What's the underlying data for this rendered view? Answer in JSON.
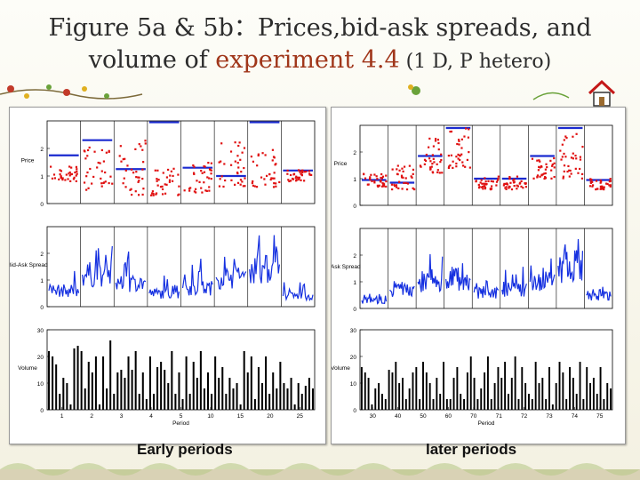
{
  "title": {
    "line1": "Figure 5a & 5b：Prices,bid-ask spreads, and",
    "line2_pre": "volume of ",
    "line2_accent": "experiment 4.4",
    "line2_sub": " (1 D, P hetero)"
  },
  "captions": {
    "left": "Early periods",
    "right": "later periods"
  },
  "colors": {
    "price_points": "#e01010",
    "equilibrium": "#1a2ad0",
    "spread": "#1530e0",
    "volume": "#000000",
    "title_accent": "#a0361a"
  },
  "icons": [
    "vine-decoration",
    "home-icon",
    "grass-decoration"
  ],
  "chart_data": [
    {
      "type": "line",
      "xlabel": "Period",
      "x_ticks": [
        "1",
        "2",
        "3",
        "4",
        "5",
        "10",
        "15",
        "20",
        "25"
      ],
      "subplots": [
        {
          "ylabel": "Price",
          "y_ticks": [
            "0",
            "1",
            "2"
          ],
          "ylim": [
            0,
            3
          ],
          "equilibrium_by_period": [
            1.75,
            2.3,
            1.25,
            2.95,
            1.3,
            1.0,
            2.95,
            1.2
          ],
          "price_band_by_period": [
            [
              0.8,
              1.4
            ],
            [
              0.5,
              2.1
            ],
            [
              0.3,
              2.3
            ],
            [
              0.3,
              1.3
            ],
            [
              0.4,
              1.5
            ],
            [
              0.6,
              2.3
            ],
            [
              0.6,
              2.0
            ],
            [
              0.8,
              1.3
            ]
          ]
        },
        {
          "ylabel": "Bid-Ask Spread",
          "y_ticks": [
            "0",
            "1",
            "2"
          ],
          "ylim": [
            0,
            3
          ],
          "typical_spread_by_period": [
            0.6,
            1.2,
            0.9,
            0.5,
            0.7,
            1.1,
            1.4,
            0.4
          ],
          "max_spread_by_period": [
            1.9,
            2.4,
            2.3,
            1.2,
            1.9,
            2.1,
            2.8,
            1.0
          ]
        },
        {
          "ylabel": "Volume",
          "y_ticks": [
            "0",
            "10",
            "20",
            "30"
          ],
          "ylim": [
            0,
            30
          ],
          "volume": [
            22,
            20,
            17,
            6,
            12,
            10,
            2,
            23,
            24,
            22,
            8,
            18,
            14,
            20,
            2,
            20,
            8,
            26,
            6,
            14,
            15,
            12,
            20,
            15,
            22,
            6,
            14,
            4,
            20,
            6,
            16,
            18,
            15,
            10,
            22,
            6,
            14,
            4,
            20,
            6,
            18,
            12,
            22,
            8,
            14,
            6,
            20,
            12,
            16,
            6,
            12,
            8,
            10,
            2,
            22,
            14,
            20,
            4,
            16,
            10,
            20,
            6,
            14,
            8,
            18,
            10,
            8,
            12,
            2,
            10,
            6,
            9,
            12,
            8
          ]
        }
      ]
    },
    {
      "type": "line",
      "xlabel": "Period",
      "x_ticks": [
        "30",
        "40",
        "50",
        "60",
        "70",
        "71",
        "72",
        "73",
        "74",
        "75"
      ],
      "subplots": [
        {
          "ylabel": "Price",
          "y_ticks": [
            "0",
            "1",
            "2"
          ],
          "ylim": [
            0,
            3
          ],
          "equilibrium_by_period": [
            0.95,
            0.85,
            1.85,
            2.9,
            1.0,
            1.0,
            1.85,
            2.9,
            0.95
          ],
          "price_band_by_period": [
            [
              0.7,
              1.2
            ],
            [
              0.6,
              1.5
            ],
            [
              1.2,
              2.6
            ],
            [
              1.4,
              2.9
            ],
            [
              0.6,
              1.1
            ],
            [
              0.6,
              1.1
            ],
            [
              1.0,
              1.9
            ],
            [
              1.0,
              2.7
            ],
            [
              0.6,
              1.0
            ]
          ]
        },
        {
          "ylabel": "Bid-Ask Spread",
          "y_ticks": [
            "0",
            "1",
            "2"
          ],
          "ylim": [
            0,
            3
          ],
          "typical_spread_by_period": [
            0.3,
            0.7,
            1.0,
            1.1,
            0.6,
            0.7,
            1.0,
            1.6,
            0.5
          ],
          "max_spread_by_period": [
            0.6,
            1.2,
            2.1,
            1.7,
            1.1,
            1.6,
            2.0,
            2.8,
            1.0
          ]
        },
        {
          "ylabel": "Volume",
          "y_ticks": [
            "0",
            "10",
            "20",
            "30"
          ],
          "ylim": [
            0,
            30
          ],
          "volume": [
            16,
            14,
            12,
            2,
            8,
            10,
            6,
            4,
            15,
            14,
            18,
            10,
            12,
            4,
            8,
            14,
            16,
            4,
            18,
            14,
            10,
            4,
            12,
            6,
            18,
            4,
            4,
            12,
            16,
            6,
            4,
            14,
            20,
            12,
            4,
            8,
            14,
            20,
            4,
            10,
            16,
            12,
            18,
            6,
            12,
            20,
            4,
            16,
            10,
            6,
            4,
            18,
            10,
            12,
            4,
            16,
            2,
            10,
            18,
            14,
            4,
            16,
            12,
            6,
            18,
            4,
            16,
            10,
            12,
            6,
            16,
            4,
            10,
            8
          ]
        }
      ]
    }
  ]
}
